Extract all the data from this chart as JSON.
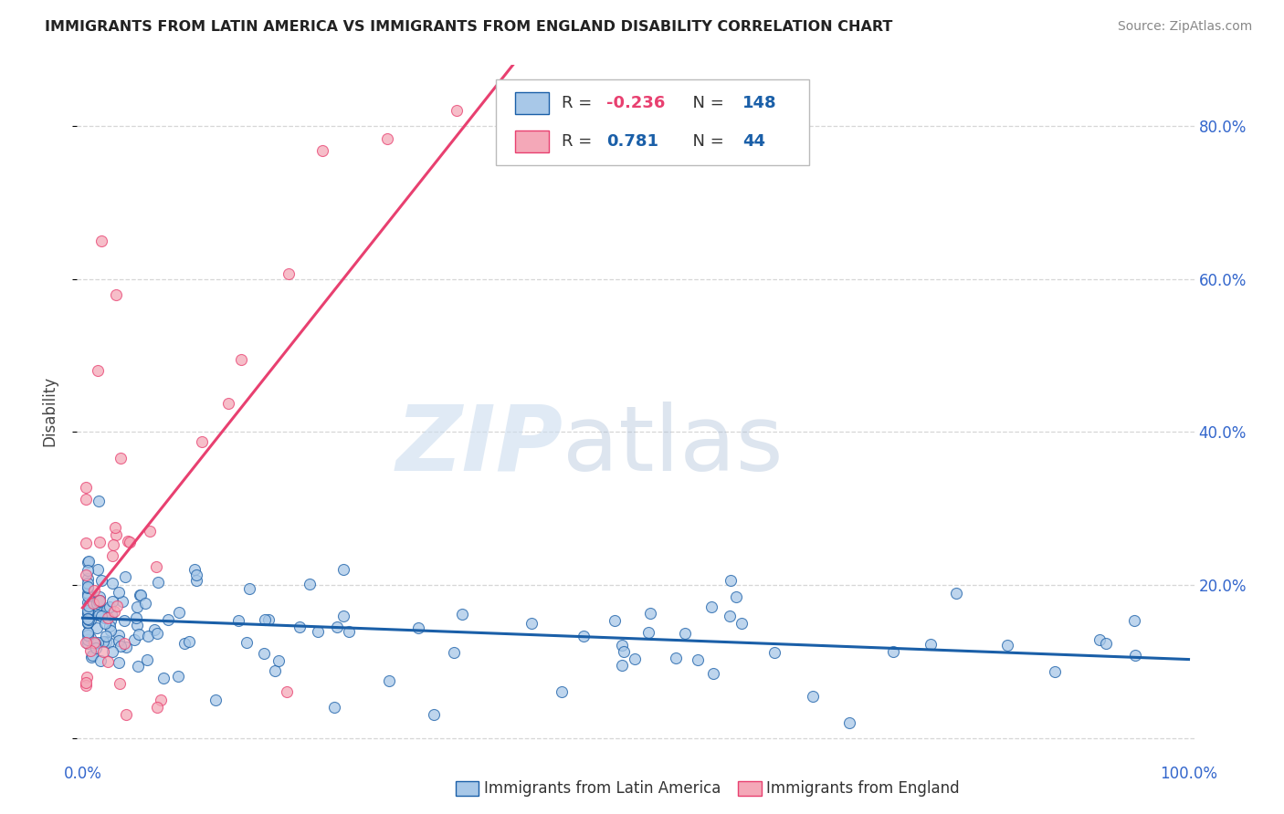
{
  "title": "IMMIGRANTS FROM LATIN AMERICA VS IMMIGRANTS FROM ENGLAND DISABILITY CORRELATION CHART",
  "source": "Source: ZipAtlas.com",
  "ylabel": "Disability",
  "legend_labels": [
    "Immigrants from Latin America",
    "Immigrants from England"
  ],
  "r_latin": -0.236,
  "n_latin": 148,
  "r_england": 0.781,
  "n_england": 44,
  "color_latin": "#a8c8e8",
  "color_england": "#f4a8b8",
  "line_color_latin": "#1a5fa8",
  "line_color_england": "#e84070",
  "background_color": "#ffffff",
  "grid_color": "#cccccc",
  "title_color": "#222222",
  "source_color": "#888888",
  "tick_color": "#3366cc",
  "ylabel_color": "#444444"
}
